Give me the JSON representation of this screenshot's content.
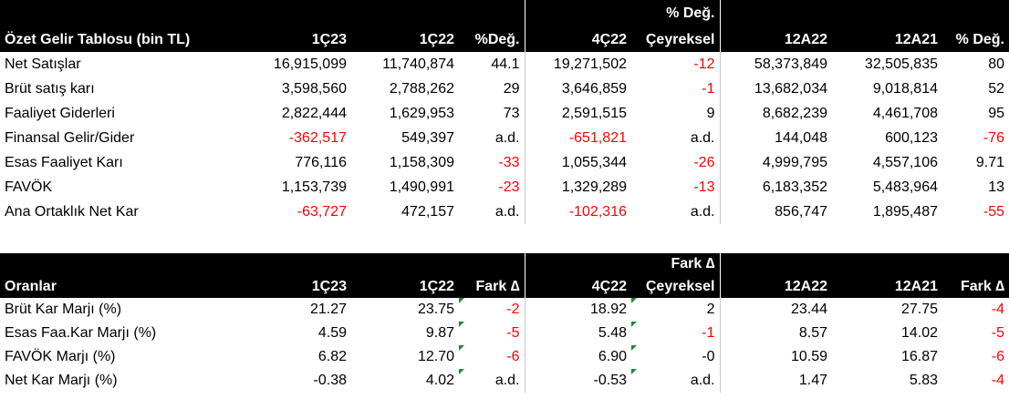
{
  "income": {
    "title": "Özet Gelir Tablosu (bin TL)",
    "columns": {
      "q1_23": "1Ç23",
      "q1_22": "1Ç22",
      "yoy": "%Değ.",
      "q4_22": "4Ç22",
      "qoq_top": "% Değ.",
      "qoq_bottom": "Çeyreksel",
      "a12_22": "12A22",
      "a12_21": "12A21",
      "ann": "% Değ."
    },
    "rows": [
      {
        "label": "Net Satışlar",
        "q1_23": "16,915,099",
        "q1_22": "11,740,874",
        "yoy": "44.1",
        "q4_22": "19,271,502",
        "qoq": "-12",
        "a12_22": "58,373,849",
        "a12_21": "32,505,835",
        "ann": "80"
      },
      {
        "label": "Brüt satış karı",
        "q1_23": "3,598,560",
        "q1_22": "2,788,262",
        "yoy": "29",
        "q4_22": "3,646,859",
        "qoq": "-1",
        "a12_22": "13,682,034",
        "a12_21": "9,018,814",
        "ann": "52"
      },
      {
        "label": "Faaliyet Giderleri",
        "q1_23": "2,822,444",
        "q1_22": "1,629,953",
        "yoy": "73",
        "q4_22": "2,591,515",
        "qoq": "9",
        "a12_22": "8,682,239",
        "a12_21": "4,461,708",
        "ann": "95"
      },
      {
        "label": "Finansal Gelir/Gider",
        "q1_23": "-362,517",
        "q1_22": "549,397",
        "yoy": "a.d.",
        "q4_22": "-651,821",
        "qoq": "a.d.",
        "a12_22": "144,048",
        "a12_21": "600,123",
        "ann": "-76"
      },
      {
        "label": "Esas Faaliyet Karı",
        "q1_23": "776,116",
        "q1_22": "1,158,309",
        "yoy": "-33",
        "q4_22": "1,055,344",
        "qoq": "-26",
        "a12_22": "4,999,795",
        "a12_21": "4,557,106",
        "ann": "9.71"
      },
      {
        "label": "FAVÖK",
        "q1_23": "1,153,739",
        "q1_22": "1,490,991",
        "yoy": "-23",
        "q4_22": "1,329,289",
        "qoq": "-13",
        "a12_22": "6,183,352",
        "a12_21": "5,483,964",
        "ann": "13"
      },
      {
        "label": "Ana Ortaklık Net Kar",
        "q1_23": "-63,727",
        "q1_22": "472,157",
        "yoy": "a.d.",
        "q4_22": "-102,316",
        "qoq": "a.d.",
        "a12_22": "856,747",
        "a12_21": "1,895,487",
        "ann": "-55"
      }
    ]
  },
  "ratios": {
    "title": "Oranlar",
    "columns": {
      "q1_23": "1Ç23",
      "q1_22": "1Ç22",
      "yoy": "Fark ∆",
      "q4_22": "4Ç22",
      "qoq_top": "Fark ∆",
      "qoq_bottom": "Çeyreksel",
      "a12_22": "12A22",
      "a12_21": "12A21",
      "ann": "Fark ∆"
    },
    "rows": [
      {
        "label": "Brüt Kar Marjı (%)",
        "q1_23": "21.27",
        "q1_22": "23.75",
        "yoy": "-2",
        "q4_22": "18.92",
        "qoq": "2",
        "a12_22": "23.44",
        "a12_21": "27.75",
        "ann": "-4"
      },
      {
        "label": "Esas Faa.Kar Marjı (%)",
        "q1_23": "4.59",
        "q1_22": "9.87",
        "yoy": "-5",
        "q4_22": "5.48",
        "qoq": "-1",
        "a12_22": "8.57",
        "a12_21": "14.02",
        "ann": "-5"
      },
      {
        "label": "FAVÖK Marjı (%)",
        "q1_23": "6.82",
        "q1_22": "12.70",
        "yoy": "-6",
        "q4_22": "6.90",
        "qoq": "-0",
        "a12_22": "10.59",
        "a12_21": "16.87",
        "ann": "-6"
      },
      {
        "label": "Net Kar Marjı (%)",
        "q1_23": "-0.38",
        "q1_22": "4.02",
        "yoy": "a.d.",
        "q4_22": "-0.53",
        "qoq": "a.d.",
        "a12_22": "1.47",
        "a12_21": "5.83",
        "ann": "-4"
      }
    ]
  },
  "colors": {
    "header_bg": "#000000",
    "header_text": "#ffffff",
    "negative": "#ff0000",
    "cell_marker": "#1a8a3a"
  }
}
